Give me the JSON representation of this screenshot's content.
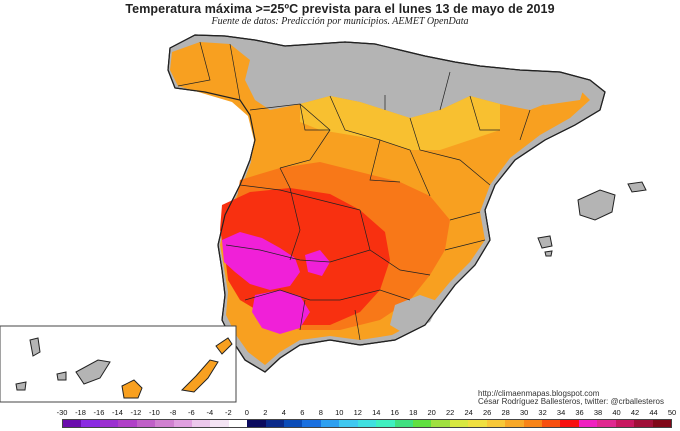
{
  "title": "Temperatura máxima >=25ºC prevista para el lunes 13 de mayo de 2019",
  "subtitle": "Fuente de datos: Predicción por municipios. AEMET OpenData",
  "credits": {
    "url": "http://climaenmapas.blogspot.com",
    "author": "César Rodríguez Ballesteros, twitter: @crballesteros"
  },
  "legend": {
    "labels": [
      "-30",
      "-18",
      "-16",
      "-14",
      "-12",
      "-10",
      "-8",
      "-6",
      "-4",
      "-2",
      "0",
      "2",
      "4",
      "6",
      "8",
      "10",
      "12",
      "14",
      "16",
      "18",
      "20",
      "22",
      "24",
      "26",
      "28",
      "30",
      "32",
      "34",
      "36",
      "38",
      "40",
      "42",
      "44",
      "50"
    ],
    "colors": [
      "#6a0dad",
      "#8a2be2",
      "#9b30d0",
      "#b040c8",
      "#c060c8",
      "#d080d0",
      "#e0a0e0",
      "#ecc8ec",
      "#f4e4f4",
      "#ffffff",
      "#0b0b5e",
      "#0b2a8a",
      "#0b4cb8",
      "#1a70e0",
      "#2ea0f0",
      "#40c8f0",
      "#40e0e0",
      "#40f0c0",
      "#40e080",
      "#60e040",
      "#a0e040",
      "#d8e840",
      "#f0e040",
      "#f8c838",
      "#f8a828",
      "#f88418",
      "#f85010",
      "#f81010",
      "#f020c0",
      "#e02890",
      "#c81860",
      "#a01038",
      "#800818"
    ]
  },
  "colors": {
    "grey_region": "#b4b4b4",
    "orange": "#f8a020",
    "light_orange": "#f8c030",
    "deep_orange": "#f87818",
    "red": "#f83010",
    "magenta": "#f020d8",
    "border": "#222222"
  }
}
